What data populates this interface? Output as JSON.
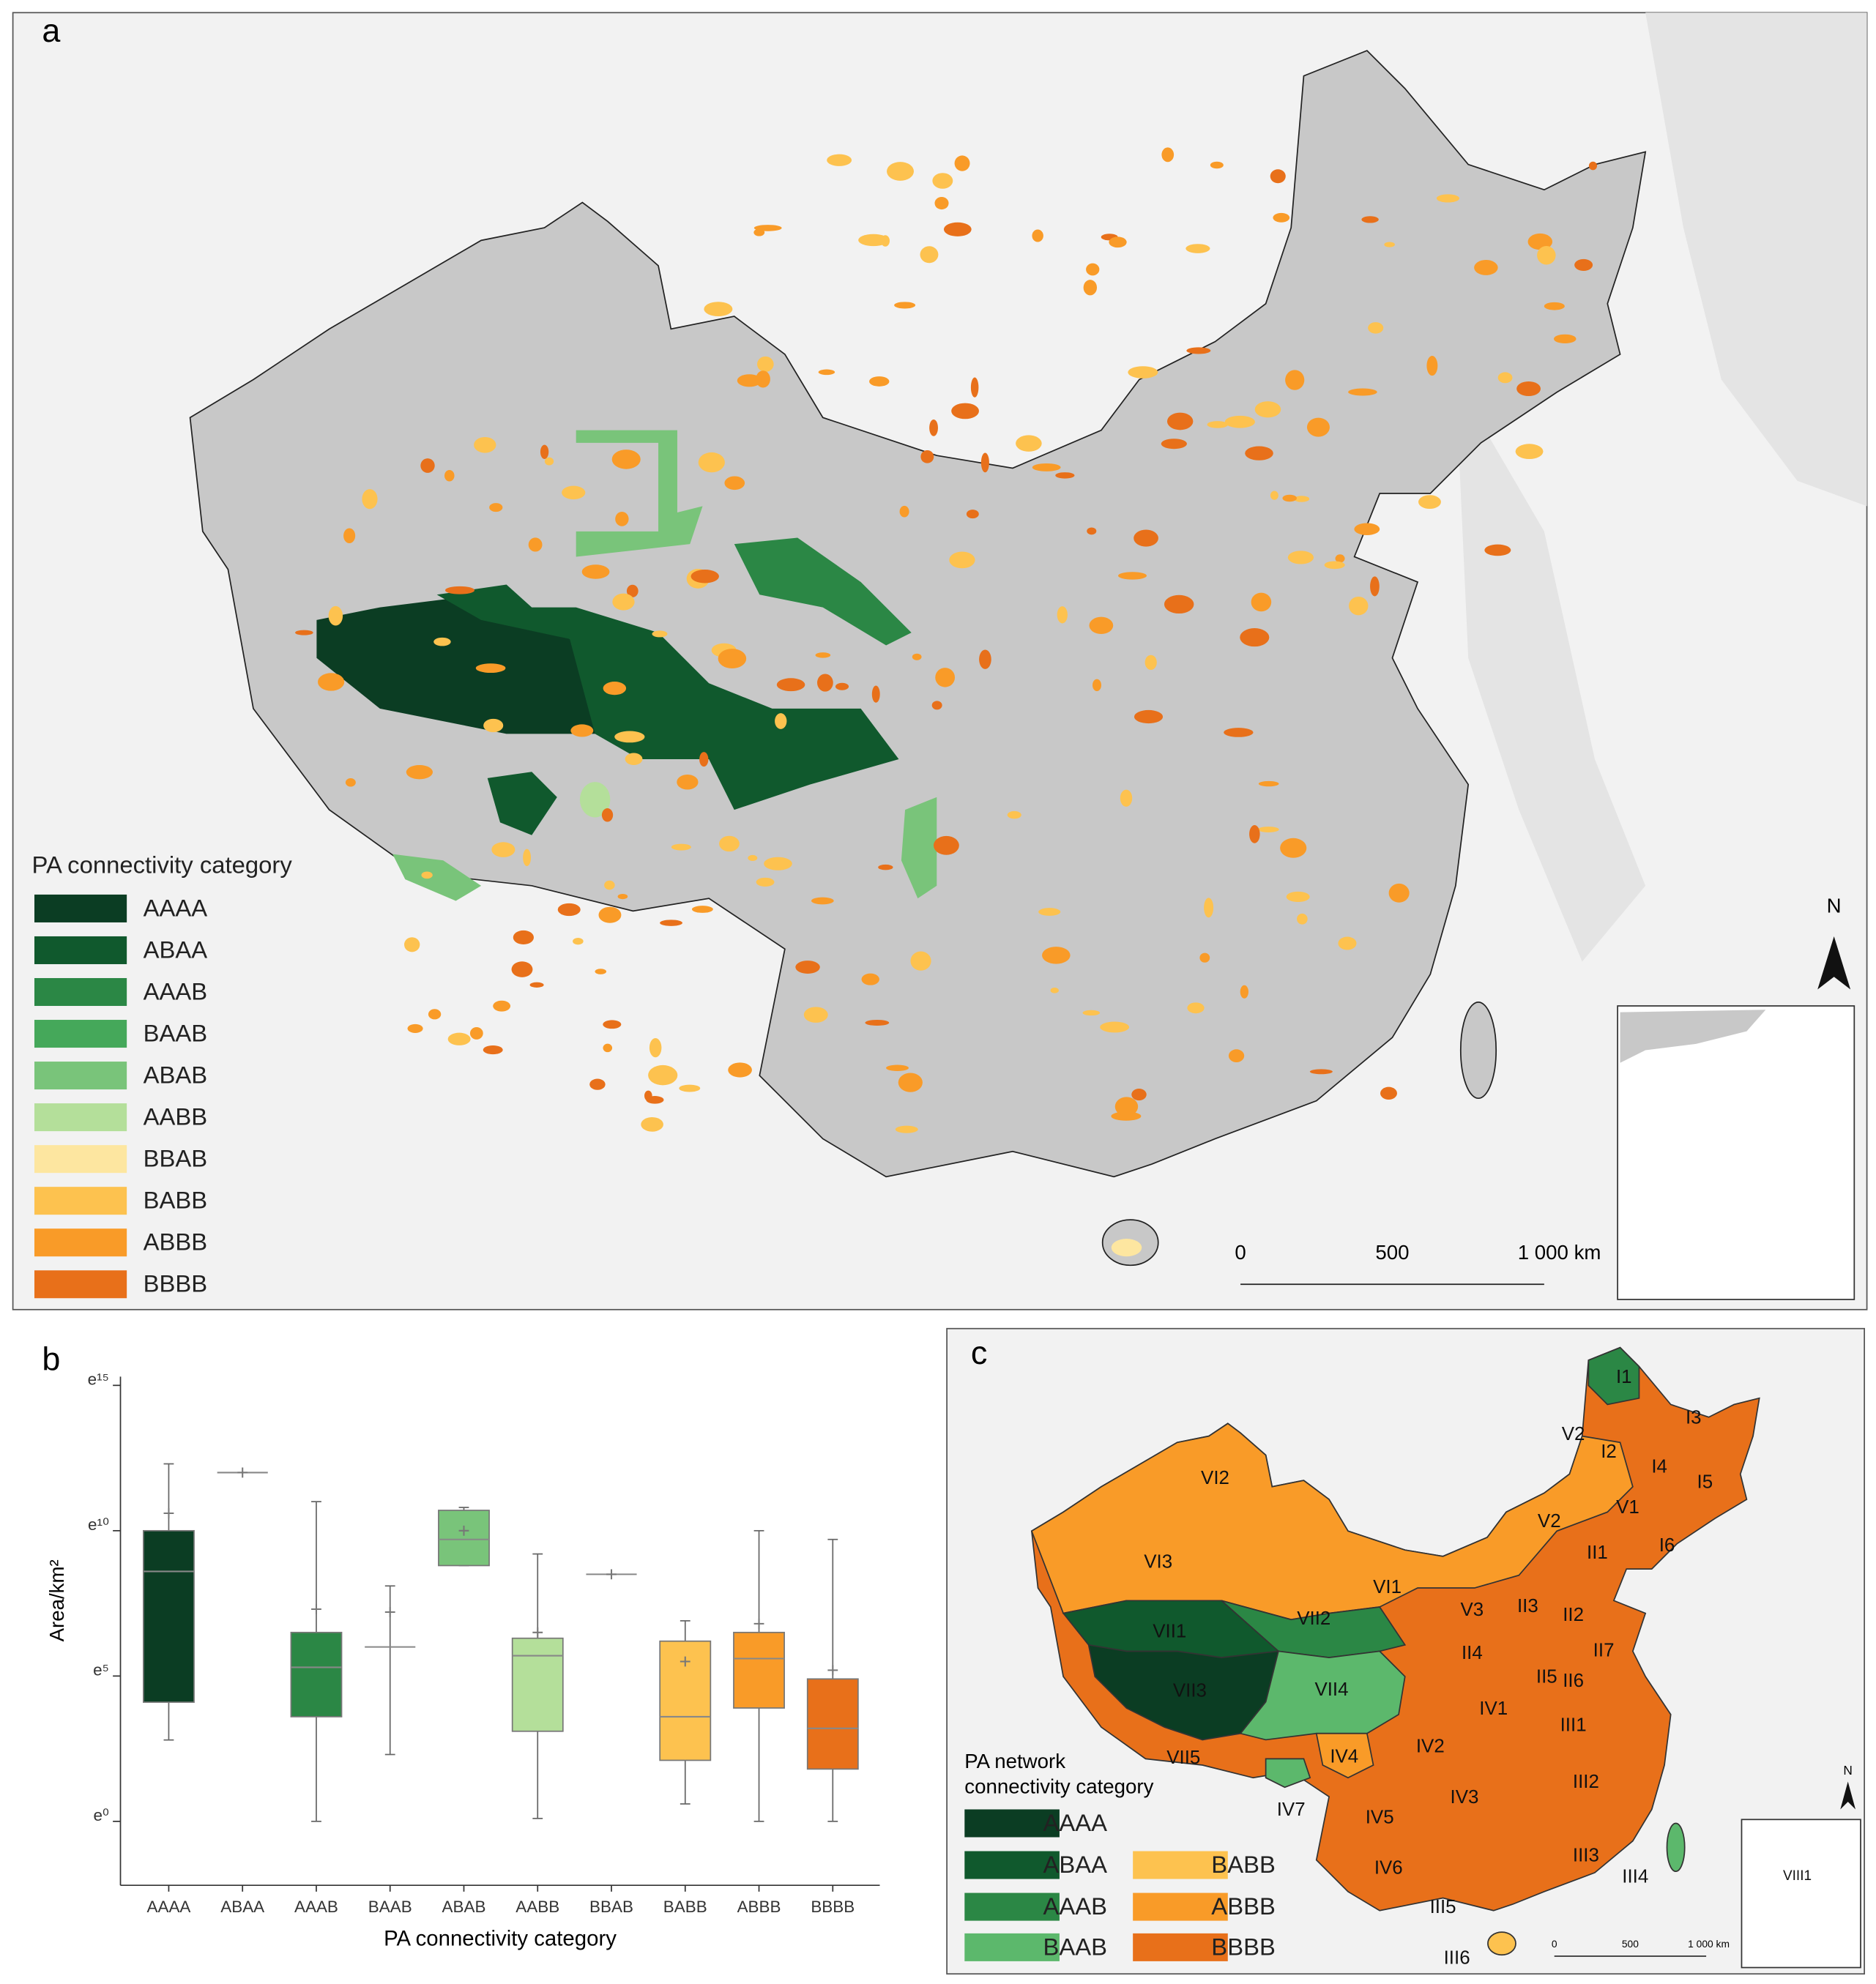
{
  "panel_a": {
    "label": "a",
    "legend_title": "PA connectivity category",
    "legend": [
      {
        "name": "AAAA",
        "color": "#0b3d23"
      },
      {
        "name": "ABAA",
        "color": "#10592d"
      },
      {
        "name": "AAAB",
        "color": "#2b8745"
      },
      {
        "name": "BAAB",
        "color": "#45a85a"
      },
      {
        "name": "ABAB",
        "color": "#79c47a"
      },
      {
        "name": "AABB",
        "color": "#b4df9a"
      },
      {
        "name": "BBAB",
        "color": "#fde6a0"
      },
      {
        "name": "BABB",
        "color": "#fdc24f"
      },
      {
        "name": "ABBB",
        "color": "#f99b28"
      },
      {
        "name": "BBBB",
        "color": "#e8701a"
      }
    ],
    "scale_labels": [
      "0",
      "500",
      "1 000 km"
    ],
    "north": "N"
  },
  "chart_data": {
    "type": "box",
    "panel_label": "b",
    "x_label": "PA connectivity category",
    "y_label": "Area/km²",
    "categories": [
      "AAAA",
      "ABAA",
      "AAAB",
      "BAAB",
      "ABAB",
      "AABB",
      "BBAB",
      "BABB",
      "ABBB",
      "BBBB"
    ],
    "colors": [
      "#0b3d23",
      "#10592d",
      "#2b8745",
      "#45a85a",
      "#79c47a",
      "#b4df9a",
      "#fde6a0",
      "#fdc24f",
      "#f99b28",
      "#e8701a"
    ],
    "min": [
      2.8,
      12.0,
      0,
      2.3,
      8.8,
      0.1,
      8.5,
      0.6,
      0,
      0
    ],
    "q1": [
      4.1,
      12.0,
      3.6,
      6.0,
      8.8,
      3.1,
      8.5,
      2.1,
      3.9,
      1.8
    ],
    "median": [
      8.6,
      12.0,
      5.3,
      6.0,
      9.7,
      5.7,
      8.5,
      3.6,
      5.6,
      3.2
    ],
    "q3": [
      10.0,
      12.0,
      6.5,
      6.0,
      10.7,
      6.3,
      8.5,
      6.2,
      6.5,
      4.9
    ],
    "max": [
      12.3,
      12.0,
      11.0,
      8.1,
      10.8,
      9.2,
      8.5,
      6.9,
      10.0,
      9.7
    ],
    "mean": [
      10.6,
      12.0,
      7.3,
      7.2,
      10.0,
      6.5,
      8.5,
      5.5,
      6.8,
      5.2
    ],
    "ylim": [
      -2.2,
      15.3
    ],
    "yticks": [
      {
        "value": 0,
        "label": "e⁰"
      },
      {
        "value": 5,
        "label": "e⁵"
      },
      {
        "value": 10,
        "label": "e¹⁰"
      },
      {
        "value": 15,
        "label": "e¹⁵"
      }
    ]
  },
  "panel_c": {
    "label": "c",
    "legend_title": [
      "PA network",
      "connectivity category"
    ],
    "legend": [
      {
        "name": "AAAA",
        "color": "#0b3d23"
      },
      {
        "name": "ABAA",
        "color": "#10592d"
      },
      {
        "name": "AAAB",
        "color": "#2b8745"
      },
      {
        "name": "BAAB",
        "color": "#5cb86c"
      },
      {
        "name": "BABB",
        "color": "#fdc24f"
      },
      {
        "name": "ABBB",
        "color": "#f99b28"
      },
      {
        "name": "BBBB",
        "color": "#e8701a"
      }
    ],
    "regions": [
      "I1",
      "I2",
      "I3",
      "I4",
      "I5",
      "I6",
      "V2",
      "V2",
      "V1",
      "VI2",
      "VI3",
      "VI1",
      "VII1",
      "VII2",
      "VII3",
      "VII4",
      "VII5",
      "IV7",
      "IV4",
      "V3",
      "II3",
      "II2",
      "II1",
      "II4",
      "II5",
      "II6",
      "II7",
      "IV1",
      "III1",
      "IV2",
      "IV3",
      "III2",
      "IV5",
      "IV6",
      "III3",
      "III4",
      "III5",
      "III6",
      "VIII1"
    ],
    "scale_labels": [
      "0",
      "500",
      "1 000 km"
    ],
    "north": "N"
  }
}
